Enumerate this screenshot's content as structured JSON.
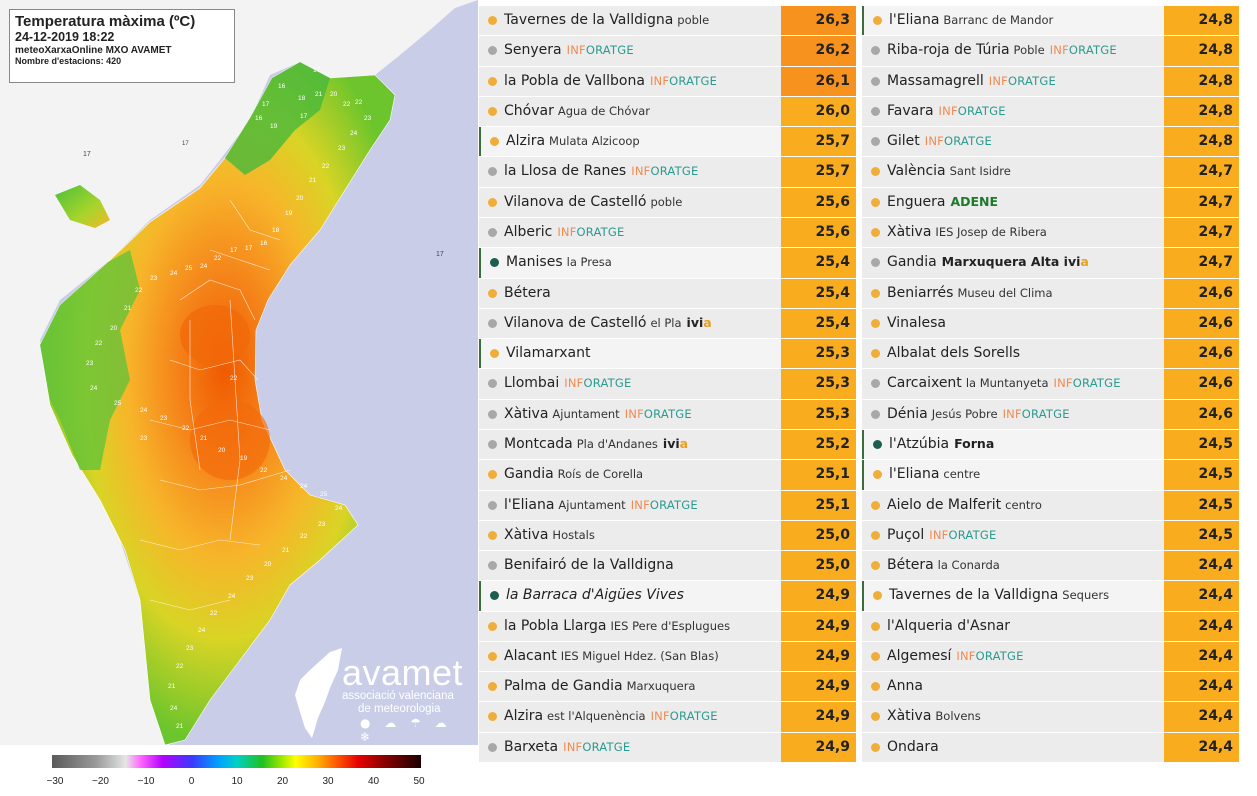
{
  "map": {
    "title": "Temperatura màxima (ºC)",
    "datetime": "24-12-2019 18:22",
    "source": "meteoXarxaOnline MXO AVAMET",
    "stations_count": "Nombre d'estacions: 420",
    "logo": {
      "name": "avamet",
      "subtitle_line1": "associació valenciana",
      "subtitle_line2": "de meteorologia",
      "weather_glyphs": "● ☁ ☂ ☁ ❄"
    },
    "color_scale": {
      "ticks": [
        "−30",
        "−20",
        "−10",
        "0",
        "10",
        "20",
        "30",
        "40",
        "50"
      ],
      "min": -30,
      "max": 50
    },
    "sea_labels": [
      "17",
      "17",
      "17"
    ],
    "station_values": [
      "17",
      "16",
      "18",
      "17",
      "16",
      "19",
      "17",
      "21",
      "20",
      "22",
      "22",
      "23",
      "24",
      "23",
      "22",
      "21",
      "20",
      "19",
      "18",
      "16",
      "17",
      "17",
      "22",
      "24",
      "25",
      "24",
      "23",
      "22",
      "21",
      "20",
      "22",
      "23",
      "24",
      "25",
      "24",
      "23",
      "22",
      "21",
      "20",
      "19",
      "22",
      "24",
      "24",
      "25",
      "24",
      "23",
      "22",
      "21",
      "20",
      "23",
      "24",
      "22",
      "24",
      "23",
      "22",
      "21",
      "24",
      "21",
      "23",
      "22"
    ]
  },
  "colors": {
    "highlight_row": "#f7921e",
    "value_bg": "#f9ac1e",
    "dot_orange": "#f0ad3a",
    "dot_gray": "#a8a8a8",
    "dot_green": "#1e5e50",
    "sea": "#c9cde8",
    "outside_land": "#f2f2f2"
  },
  "stations_left": [
    {
      "name": "Tavernes de la Valldigna",
      "detail": "poble",
      "tag": "",
      "value": "26,3",
      "dot": "orange",
      "hi": true,
      "marked": false
    },
    {
      "name": "Senyera",
      "detail": "",
      "tag": "INFORATGE",
      "value": "26,2",
      "dot": "gray",
      "hi": true,
      "marked": false
    },
    {
      "name": "la Pobla de Vallbona",
      "detail": "",
      "tag": "INFORATGE",
      "value": "26,1",
      "dot": "orange",
      "hi": true,
      "marked": false
    },
    {
      "name": "Chóvar",
      "detail": "Agua de Chóvar",
      "tag": "",
      "value": "26,0",
      "dot": "orange",
      "hi": false,
      "marked": false
    },
    {
      "name": "Alzira",
      "detail": "Mulata Alzicoop",
      "tag": "",
      "value": "25,7",
      "dot": "orange",
      "hi": false,
      "marked": true
    },
    {
      "name": "la Llosa de Ranes",
      "detail": "",
      "tag": "INFORATGE",
      "value": "25,7",
      "dot": "gray",
      "hi": false,
      "marked": false
    },
    {
      "name": "Vilanova de Castelló",
      "detail": "poble",
      "tag": "",
      "value": "25,6",
      "dot": "orange",
      "hi": false,
      "marked": false
    },
    {
      "name": "Alberic",
      "detail": "",
      "tag": "INFORATGE",
      "value": "25,6",
      "dot": "gray",
      "hi": false,
      "marked": false
    },
    {
      "name": "Manises",
      "detail": "la Presa",
      "tag": "",
      "value": "25,4",
      "dot": "green",
      "hi": false,
      "marked": true
    },
    {
      "name": "Bétera",
      "detail": "",
      "tag": "",
      "value": "25,4",
      "dot": "orange",
      "hi": false,
      "marked": false
    },
    {
      "name": "Vilanova de Castelló",
      "detail": "el Pla",
      "tag": "ivia",
      "value": "25,4",
      "dot": "gray",
      "hi": false,
      "marked": false
    },
    {
      "name": "Vilamarxant",
      "detail": "",
      "tag": "",
      "value": "25,3",
      "dot": "orange",
      "hi": false,
      "marked": true
    },
    {
      "name": "Llombai",
      "detail": "",
      "tag": "INFORATGE",
      "value": "25,3",
      "dot": "gray",
      "hi": false,
      "marked": false
    },
    {
      "name": "Xàtiva",
      "detail": "Ajuntament",
      "tag": "INFORATGE",
      "value": "25,3",
      "dot": "gray",
      "hi": false,
      "marked": false
    },
    {
      "name": "Montcada",
      "detail": "Pla d'Andanes",
      "tag": "ivia",
      "value": "25,2",
      "dot": "gray",
      "hi": false,
      "marked": false
    },
    {
      "name": "Gandia",
      "detail": "Roís de Corella",
      "tag": "",
      "value": "25,1",
      "dot": "orange",
      "hi": false,
      "marked": false
    },
    {
      "name": "l'Eliana",
      "detail": "Ajuntament",
      "tag": "INFORATGE",
      "value": "25,1",
      "dot": "gray",
      "hi": false,
      "marked": false
    },
    {
      "name": "Xàtiva",
      "detail": "Hostals",
      "tag": "",
      "value": "25,0",
      "dot": "orange",
      "hi": false,
      "marked": false
    },
    {
      "name": "Benifairó de la Valldigna",
      "detail": "",
      "tag": "",
      "value": "25,0",
      "dot": "gray",
      "hi": false,
      "marked": false
    },
    {
      "name": "la Barraca d'Aigües Vives",
      "detail": "",
      "tag": "",
      "value": "24,9",
      "dot": "green",
      "hi": false,
      "marked": true,
      "italic": true
    },
    {
      "name": "la Pobla Llarga",
      "detail": "IES Pere d'Esplugues",
      "tag": "",
      "value": "24,9",
      "dot": "orange",
      "hi": false,
      "marked": false
    },
    {
      "name": "Alacant",
      "detail": "IES Miguel Hdez. (San Blas)",
      "tag": "",
      "value": "24,9",
      "dot": "orange",
      "hi": false,
      "marked": false
    },
    {
      "name": "Palma de Gandia",
      "detail": "Marxuquera",
      "tag": "",
      "value": "24,9",
      "dot": "orange",
      "hi": false,
      "marked": false
    },
    {
      "name": "Alzira",
      "detail": "est l'Alquenència",
      "tag": "INFORATGE",
      "value": "24,9",
      "dot": "orange",
      "hi": false,
      "marked": false
    },
    {
      "name": "Barxeta",
      "detail": "",
      "tag": "INFORATGE",
      "value": "24,9",
      "dot": "gray",
      "hi": false,
      "marked": false
    }
  ],
  "stations_right": [
    {
      "name": "l'Eliana",
      "detail": "Barranc de Mandor",
      "tag": "",
      "value": "24,8",
      "dot": "orange",
      "hi": false,
      "marked": true
    },
    {
      "name": "Riba-roja de Túria",
      "detail": "Poble",
      "tag": "INFORATGE",
      "value": "24,8",
      "dot": "gray",
      "hi": false,
      "marked": false
    },
    {
      "name": "Massamagrell",
      "detail": "",
      "tag": "INFORATGE",
      "value": "24,8",
      "dot": "gray",
      "hi": false,
      "marked": false
    },
    {
      "name": "Favara",
      "detail": "",
      "tag": "INFORATGE",
      "value": "24,8",
      "dot": "gray",
      "hi": false,
      "marked": false
    },
    {
      "name": "Gilet",
      "detail": "",
      "tag": "INFORATGE",
      "value": "24,8",
      "dot": "gray",
      "hi": false,
      "marked": false
    },
    {
      "name": "València",
      "detail": "Sant Isidre",
      "tag": "",
      "value": "24,7",
      "dot": "orange",
      "hi": false,
      "marked": false
    },
    {
      "name": "Enguera",
      "detail": "",
      "tag": "ADENE",
      "value": "24,7",
      "dot": "orange",
      "hi": false,
      "marked": false
    },
    {
      "name": "Xàtiva",
      "detail": "IES Josep de Ribera",
      "tag": "",
      "value": "24,7",
      "dot": "orange",
      "hi": false,
      "marked": false
    },
    {
      "name": "Gandia",
      "detail": "",
      "tag": "Marxuquera Alta ivia",
      "value": "24,7",
      "dot": "gray",
      "hi": false,
      "marked": false
    },
    {
      "name": "Beniarrés",
      "detail": "Museu del Clima",
      "tag": "",
      "value": "24,6",
      "dot": "orange",
      "hi": false,
      "marked": false
    },
    {
      "name": "Vinalesa",
      "detail": "",
      "tag": "",
      "value": "24,6",
      "dot": "orange",
      "hi": false,
      "marked": false
    },
    {
      "name": "Albalat dels Sorells",
      "detail": "",
      "tag": "",
      "value": "24,6",
      "dot": "orange",
      "hi": false,
      "marked": false
    },
    {
      "name": "Carcaixent",
      "detail": "la Muntanyeta",
      "tag": "INFORATGE",
      "value": "24,6",
      "dot": "gray",
      "hi": false,
      "marked": false
    },
    {
      "name": "Dénia",
      "detail": "Jesús Pobre",
      "tag": "INFORATGE",
      "value": "24,6",
      "dot": "gray",
      "hi": false,
      "marked": false
    },
    {
      "name": "l'Atzúbia",
      "detail": "",
      "tag": "Forna",
      "value": "24,5",
      "dot": "green",
      "hi": false,
      "marked": true
    },
    {
      "name": "l'Eliana",
      "detail": "centre",
      "tag": "",
      "value": "24,5",
      "dot": "orange",
      "hi": false,
      "marked": true
    },
    {
      "name": "Aielo de Malferit",
      "detail": "centro",
      "tag": "",
      "value": "24,5",
      "dot": "orange",
      "hi": false,
      "marked": false
    },
    {
      "name": "Puçol",
      "detail": "",
      "tag": "INFORATGE",
      "value": "24,5",
      "dot": "orange",
      "hi": false,
      "marked": false
    },
    {
      "name": "Bétera",
      "detail": "la Conarda",
      "tag": "",
      "value": "24,4",
      "dot": "orange",
      "hi": false,
      "marked": false
    },
    {
      "name": "Tavernes de la Valldigna",
      "detail": "Sequers",
      "tag": "",
      "value": "24,4",
      "dot": "orange",
      "hi": false,
      "marked": true
    },
    {
      "name": "l'Alqueria d'Asnar",
      "detail": "",
      "tag": "",
      "value": "24,4",
      "dot": "orange",
      "hi": false,
      "marked": false
    },
    {
      "name": "Algemesí",
      "detail": "",
      "tag": "INFORATGE",
      "value": "24,4",
      "dot": "orange",
      "hi": false,
      "marked": false
    },
    {
      "name": "Anna",
      "detail": "",
      "tag": "",
      "value": "24,4",
      "dot": "orange",
      "hi": false,
      "marked": false
    },
    {
      "name": "Xàtiva",
      "detail": "Bolvens",
      "tag": "",
      "value": "24,4",
      "dot": "orange",
      "hi": false,
      "marked": false
    },
    {
      "name": "Ondara",
      "detail": "",
      "tag": "",
      "value": "24,4",
      "dot": "orange",
      "hi": false,
      "marked": false
    }
  ]
}
